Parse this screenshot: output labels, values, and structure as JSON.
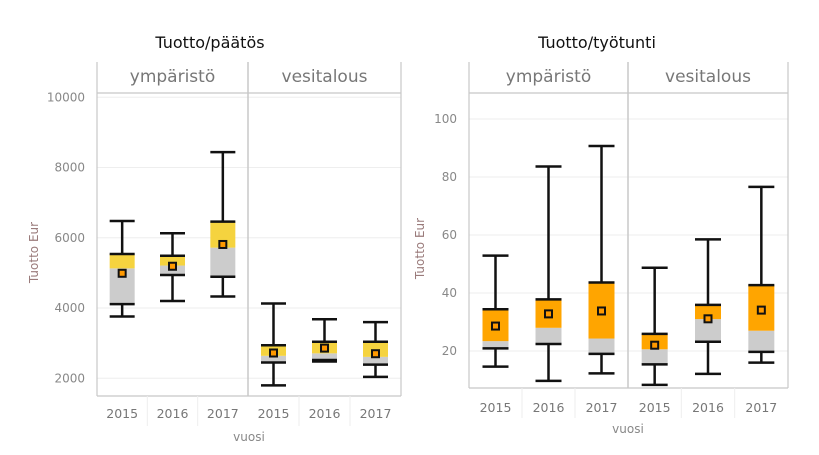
{
  "colors": {
    "upper_box_left": "#F5D33F",
    "upper_box_right": "#FFA500",
    "lower_box": "#CCCCCC",
    "whisker": "#111111",
    "grid": "#EEEEEE",
    "frame": "#C8C8C8"
  },
  "chart_data": [
    {
      "type": "box",
      "title": "Tuotto/päätös",
      "xlabel": "vuosi",
      "ylabel": "Tuotto Eur",
      "ylim": [
        1500,
        10000
      ],
      "yticks": [
        2000,
        4000,
        6000,
        8000,
        10000
      ],
      "grid": true,
      "panels": [
        {
          "name": "ympäristö",
          "boxes": [
            {
              "x": "2015",
              "min": 3760,
              "q1": 4110,
              "median": 5130,
              "q3": 5540,
              "max": 6480,
              "mean": 4990
            },
            {
              "x": "2016",
              "min": 4200,
              "q1": 4940,
              "median": 5210,
              "q3": 5490,
              "max": 6130,
              "mean": 5190
            },
            {
              "x": "2017",
              "min": 4330,
              "q1": 4890,
              "median": 5720,
              "q3": 6460,
              "max": 8440,
              "mean": 5810
            }
          ]
        },
        {
          "name": "vesitalous",
          "boxes": [
            {
              "x": "2015",
              "min": 1800,
              "q1": 2450,
              "median": 2640,
              "q3": 2940,
              "max": 4130,
              "mean": 2720
            },
            {
              "x": "2016",
              "min": 2480,
              "q1": 2520,
              "median": 2710,
              "q3": 3040,
              "max": 3680,
              "mean": 2860
            },
            {
              "x": "2017",
              "min": 2040,
              "q1": 2390,
              "median": 2610,
              "q3": 3040,
              "max": 3600,
              "mean": 2700
            }
          ]
        }
      ]
    },
    {
      "type": "box",
      "title": "Tuotto/työtunti",
      "xlabel": "vuosi",
      "ylabel": "Tuotto Eur",
      "ylim": [
        7,
        110
      ],
      "yticks": [
        20,
        40,
        60,
        80,
        100
      ],
      "grid": true,
      "panels": [
        {
          "name": "ympäristö",
          "boxes": [
            {
              "x": "2015",
              "min": 14.6,
              "q1": 20.9,
              "median": 23.4,
              "q3": 34.4,
              "max": 52.9,
              "mean": 28.6
            },
            {
              "x": "2016",
              "min": 9.7,
              "q1": 22.4,
              "median": 28.0,
              "q3": 37.8,
              "max": 83.6,
              "mean": 32.8
            },
            {
              "x": "2017",
              "min": 12.3,
              "q1": 19.0,
              "median": 24.3,
              "q3": 43.6,
              "max": 90.7,
              "mean": 33.8
            }
          ]
        },
        {
          "name": "vesitalous",
          "boxes": [
            {
              "x": "2015",
              "min": 8.3,
              "q1": 15.4,
              "median": 20.6,
              "q3": 25.9,
              "max": 48.7,
              "mean": 22.0
            },
            {
              "x": "2016",
              "min": 12.1,
              "q1": 23.2,
              "median": 31.0,
              "q3": 35.9,
              "max": 58.5,
              "mean": 31.1
            },
            {
              "x": "2017",
              "min": 16.0,
              "q1": 19.7,
              "median": 27.0,
              "q3": 42.7,
              "max": 76.6,
              "mean": 34.1
            }
          ]
        }
      ]
    }
  ]
}
